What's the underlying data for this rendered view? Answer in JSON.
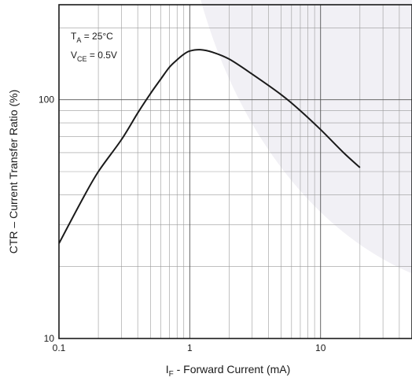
{
  "chart_data": {
    "type": "line",
    "title": "",
    "xlabel": {
      "main": "I",
      "sub": "F",
      "rest": " - Forward Current (mA)"
    },
    "ylabel": "CTR – Current Transfer Ratio (%)",
    "x_scale": "log",
    "y_scale": "log",
    "xlim": [
      0.1,
      50
    ],
    "ylim": [
      10,
      250
    ],
    "x_ticks": [
      {
        "value": 0.1,
        "label": "0.1"
      },
      {
        "value": 1,
        "label": "1"
      },
      {
        "value": 10,
        "label": "10"
      }
    ],
    "y_ticks": [
      {
        "value": 10,
        "label": "10"
      },
      {
        "value": 100,
        "label": "100"
      }
    ],
    "grid": true,
    "annotations": [
      {
        "main": "T",
        "sub": "A",
        "rest": " = 25°C"
      },
      {
        "main": "V",
        "sub": "CE",
        "rest": " = 0.5V"
      }
    ],
    "series": [
      {
        "color": "#1a1a1a",
        "x": [
          0.1,
          0.15,
          0.2,
          0.3,
          0.4,
          0.5,
          0.6,
          0.7,
          0.8,
          0.9,
          1.0,
          1.2,
          1.5,
          2,
          3,
          5,
          7,
          10,
          15,
          20
        ],
        "y": [
          25,
          38,
          50,
          68,
          88,
          106,
          122,
          137,
          147,
          155,
          160,
          162,
          158,
          148,
          128,
          105,
          90,
          75,
          60,
          52
        ]
      }
    ]
  }
}
